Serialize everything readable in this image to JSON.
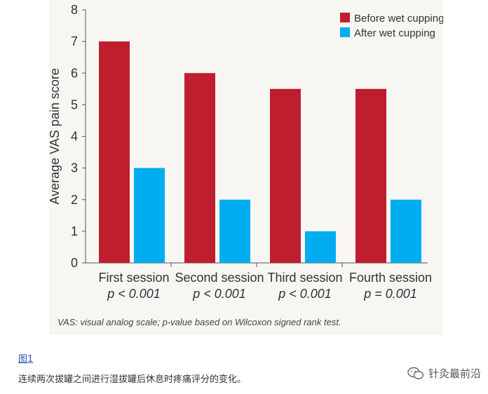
{
  "chart_data": {
    "type": "bar",
    "ylabel": "Average VAS pain score",
    "ylim": [
      0,
      8
    ],
    "yticks": [
      0,
      1,
      2,
      3,
      4,
      5,
      6,
      7,
      8
    ],
    "categories": [
      "First session",
      "Second session",
      "Third session",
      "Fourth session"
    ],
    "p_values": [
      "p < 0.001",
      "p < 0.001",
      "p < 0.001",
      "p = 0.001"
    ],
    "series": [
      {
        "name": "Before wet cupping",
        "color": "#be1e2d",
        "values": [
          7,
          6,
          5.5,
          5.5
        ]
      },
      {
        "name": "After wet cupping",
        "color": "#00aeef",
        "values": [
          3,
          2,
          1,
          2
        ]
      }
    ],
    "legend_position": "top-right",
    "grid": false
  },
  "footnote": "VAS: visual analog scale; p-value based on Wilcoxon signed rank test.",
  "figure_label": "图1",
  "caption": "连续两次拔罐之间进行湿拔罐后休息时疼痛评分的变化。",
  "watermark": {
    "text": "针灸最前沿",
    "icon": "wechat-icon"
  }
}
